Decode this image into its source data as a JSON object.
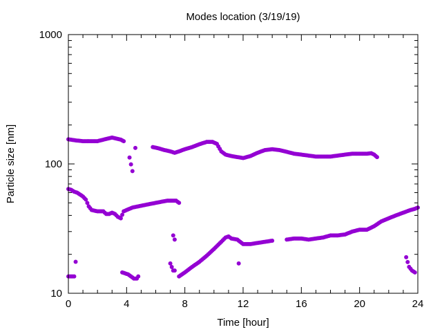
{
  "chart_data": {
    "type": "scatter",
    "title": "Modes location (3/19/19)",
    "xlabel": "Time [hour]",
    "ylabel": "Particle size [nm]",
    "xlim": [
      0,
      24
    ],
    "ylim": [
      10,
      1000
    ],
    "yscale": "log",
    "grid": false,
    "legend": "none",
    "marker_color": "#9400d3",
    "x_ticks": [
      {
        "v": 0,
        "label": "0"
      },
      {
        "v": 4,
        "label": "4"
      },
      {
        "v": 8,
        "label": "8"
      },
      {
        "v": 12,
        "label": "12"
      },
      {
        "v": 16,
        "label": "16"
      },
      {
        "v": 20,
        "label": "20"
      },
      {
        "v": 24,
        "label": "24"
      }
    ],
    "y_ticks": [
      {
        "v": 10,
        "label": "10"
      },
      {
        "v": 100,
        "label": "100"
      },
      {
        "v": 1000,
        "label": "1000"
      }
    ],
    "series": [
      {
        "x": [
          0.0,
          0.5,
          1.0,
          1.5,
          2.0,
          2.5,
          3.0,
          3.3,
          3.6,
          3.8,
          5.8,
          6.2,
          6.6,
          7.0,
          7.3,
          7.6,
          8.0,
          8.5,
          9.0,
          9.5,
          9.9,
          10.2,
          10.5,
          10.8,
          11.2,
          11.6,
          12.0,
          12.5,
          13.0,
          13.5,
          14.0,
          14.5,
          15.0,
          15.5,
          16.0,
          16.5,
          17.0,
          17.5,
          18.0,
          18.5,
          19.0,
          19.5,
          20.0,
          20.5,
          20.8,
          21.0,
          21.2
        ],
        "y": [
          155,
          152,
          150,
          150,
          150,
          155,
          160,
          157,
          154,
          150,
          135,
          132,
          128,
          125,
          122,
          125,
          130,
          135,
          142,
          148,
          148,
          143,
          125,
          118,
          115,
          113,
          111,
          115,
          122,
          128,
          130,
          128,
          124,
          120,
          118,
          116,
          114,
          114,
          114,
          116,
          118,
          120,
          120,
          120,
          121,
          118,
          113
        ]
      },
      {
        "x": [
          0.0,
          0.2,
          0.4,
          0.6,
          0.8,
          1.0,
          1.2,
          1.4,
          1.6,
          2.0,
          2.4,
          2.6,
          2.8,
          3.0,
          3.2,
          3.4,
          3.6,
          3.8,
          4.0,
          4.4,
          4.8,
          5.2,
          5.6,
          6.0,
          6.4,
          6.8,
          7.2,
          7.4,
          7.6
        ],
        "y": [
          64,
          63,
          61,
          60,
          58,
          56,
          53,
          47,
          44,
          43,
          43,
          41,
          41,
          42,
          41,
          39,
          38,
          43,
          44,
          46,
          47,
          48,
          49,
          50,
          51,
          52,
          52,
          52,
          50
        ]
      },
      {
        "x": [
          7.6,
          8.0,
          8.5,
          9.0,
          9.5,
          10.0,
          10.5,
          10.8,
          11.0,
          11.2,
          11.6,
          12.0,
          12.5,
          13.0,
          13.5,
          14.0,
          15.0,
          15.5,
          16.0,
          16.5,
          17.0,
          17.5,
          18.0,
          18.5,
          19.0,
          19.5,
          20.0,
          20.5,
          21.0,
          21.5,
          22.0,
          22.5,
          23.0,
          23.5,
          23.8,
          24.0
        ],
        "y": [
          13.5,
          14.5,
          16,
          17.5,
          19.5,
          22,
          25,
          27,
          27.5,
          26.5,
          26,
          24,
          24,
          24.5,
          25,
          25.5,
          26,
          26.5,
          26.5,
          26,
          26.5,
          27,
          28,
          28,
          28.5,
          30,
          31,
          31,
          33,
          36,
          38,
          40,
          42,
          44,
          45,
          46
        ]
      },
      {
        "x": [
          0.0,
          0.2,
          0.4,
          0.5,
          3.7,
          4.1,
          4.3,
          4.5,
          4.7,
          4.8,
          7.0,
          7.2,
          7.3,
          11.7,
          23.2,
          23.4,
          23.6,
          23.8
        ],
        "y": [
          13.5,
          13.5,
          13.5,
          17.5,
          14.5,
          14,
          13.5,
          13,
          13,
          13.5,
          17,
          15,
          15,
          17,
          19,
          16,
          15,
          14.5
        ]
      },
      {
        "x": [
          4.2,
          4.4,
          4.6,
          7.2,
          7.3
        ],
        "y": [
          112,
          88,
          133,
          28,
          26
        ]
      }
    ]
  }
}
